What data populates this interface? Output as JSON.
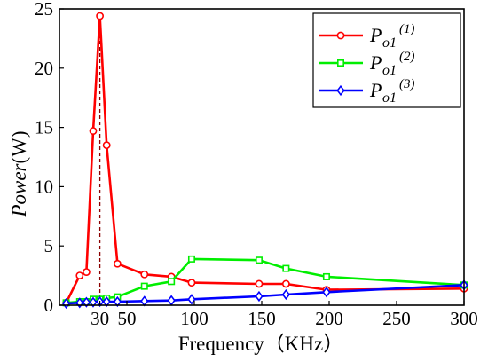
{
  "chart_data": {
    "type": "line",
    "xlabel": "Frequency（KHz）",
    "ylabel_italic": "Power",
    "ylabel_unit": "(W)",
    "xlim": [
      0,
      300
    ],
    "ylim": [
      0,
      25
    ],
    "x_ticks": [
      30,
      50,
      100,
      150,
      200,
      250,
      300
    ],
    "y_ticks": [
      0,
      5,
      10,
      15,
      20,
      25
    ],
    "grid": false,
    "legend_position": "top-right",
    "reference_line": {
      "x": 30,
      "y_top": 24.4
    },
    "series": [
      {
        "label_base": "P",
        "label_sub": "o1",
        "label_sup": "(1)",
        "color": "#ff0000",
        "marker": "circle",
        "x": [
          5,
          15,
          20,
          25,
          30,
          35,
          43,
          63,
          83,
          98,
          148,
          168,
          198,
          300
        ],
        "y": [
          0.2,
          2.5,
          2.8,
          14.7,
          24.4,
          13.5,
          3.5,
          2.6,
          2.4,
          1.9,
          1.8,
          1.8,
          1.3,
          1.4
        ]
      },
      {
        "label_base": "P",
        "label_sub": "o1",
        "label_sup": "(2)",
        "color": "#00ee00",
        "marker": "square",
        "x": [
          5,
          15,
          20,
          25,
          30,
          35,
          43,
          63,
          83,
          98,
          148,
          168,
          198,
          300
        ],
        "y": [
          0.2,
          0.3,
          0.3,
          0.5,
          0.5,
          0.6,
          0.7,
          1.6,
          2.0,
          3.9,
          3.8,
          3.1,
          2.4,
          1.7
        ]
      },
      {
        "label_base": "P",
        "label_sub": "o1",
        "label_sup": "(3)",
        "color": "#0000ff",
        "marker": "diamond",
        "x": [
          5,
          15,
          20,
          25,
          30,
          35,
          43,
          63,
          83,
          98,
          148,
          168,
          198,
          300
        ],
        "y": [
          0.15,
          0.2,
          0.25,
          0.25,
          0.3,
          0.3,
          0.3,
          0.35,
          0.4,
          0.5,
          0.75,
          0.9,
          1.1,
          1.7
        ]
      }
    ]
  }
}
